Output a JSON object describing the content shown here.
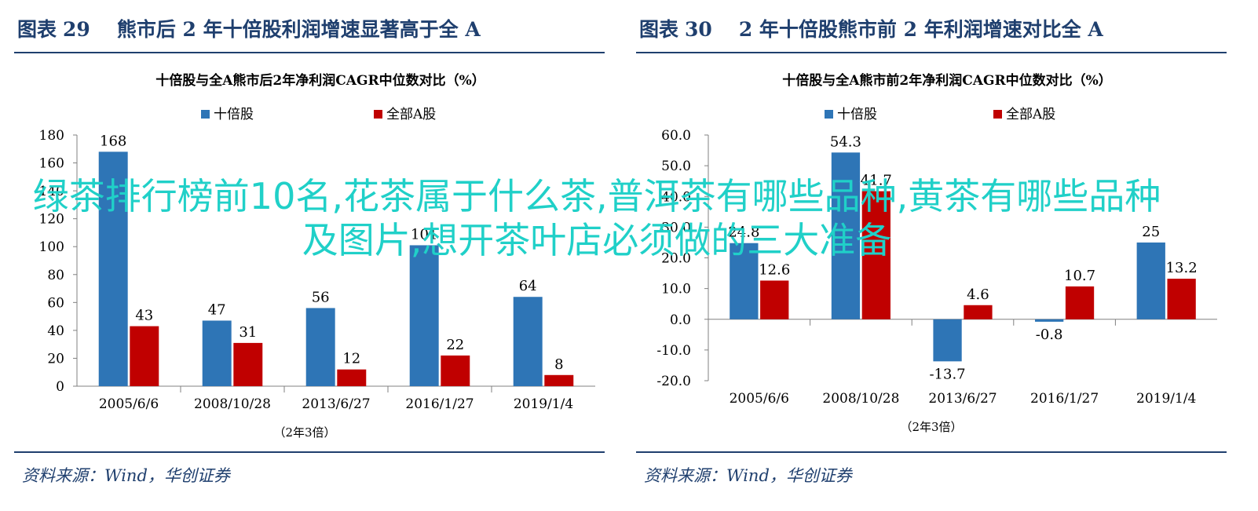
{
  "left": {
    "fig_label": "图表",
    "fig_num": "29",
    "fig_title": "熊市后 2 年十倍股利润增速显著高于全 A",
    "source": "资料来源：Wind，华创证券"
  },
  "right": {
    "fig_label": "图表",
    "fig_num": "30",
    "fig_title": "2 年十倍股熊市前 2 年利润增速对比全 A",
    "source": "资料来源：Wind，华创证券"
  },
  "overlay_text": "绿茶排行榜前10名,花茶属于什么茶,普洱茶有哪些品种,黄茶有哪些品种及图片,想开茶叶店必须做的三大准备",
  "colors": {
    "blue": "#2e75b6",
    "red": "#c00000",
    "title": "#1f3f6e",
    "overlay": "#20d0c8"
  },
  "chart_data": [
    {
      "type": "bar",
      "title": "十倍股与全A熊市后2年净利润CAGR中位数对比（%）",
      "categories": [
        "2005/6/6",
        "2008/10/28",
        "2013/6/27",
        "2016/1/27",
        "2019/1/4"
      ],
      "xlabel": "（2年3倍）",
      "ylim": [
        0,
        180
      ],
      "yticks": [
        "0",
        "20",
        "40",
        "60",
        "80",
        "100",
        "120",
        "140",
        "160",
        "180"
      ],
      "legend_position": "top",
      "series": [
        {
          "name": "十倍股",
          "color": "#2e75b6",
          "values": [
            168,
            47,
            56,
            101,
            64
          ],
          "labels": [
            "168",
            "47",
            "56",
            "101",
            "64"
          ]
        },
        {
          "name": "全部A股",
          "color": "#c00000",
          "values": [
            43,
            31,
            12,
            22,
            8
          ],
          "labels": [
            "43",
            "31",
            "12",
            "22",
            "8"
          ]
        }
      ]
    },
    {
      "type": "bar",
      "title": "十倍股与全A熊市前2年净利润CAGR中位数对比（%）",
      "categories": [
        "2005/6/6",
        "2008/10/28",
        "2013/6/27",
        "2016/1/27",
        "2019/1/4"
      ],
      "xlabel": "（2年3倍）",
      "ylim": [
        -20,
        60
      ],
      "yticks": [
        "-20.0",
        "-10.0",
        "0.0",
        "10.0",
        "20.0",
        "30.0",
        "40.0",
        "50.0",
        "60.0"
      ],
      "legend_position": "top",
      "series": [
        {
          "name": "十倍股",
          "color": "#2e75b6",
          "values": [
            24.8,
            54.3,
            -13.7,
            -0.8,
            25
          ],
          "labels": [
            "24.8",
            "54.3",
            "-13.7",
            "-0.8",
            "25"
          ]
        },
        {
          "name": "全部A股",
          "color": "#c00000",
          "values": [
            12.6,
            41.7,
            4.6,
            10.7,
            13.2
          ],
          "labels": [
            "12.6",
            "41.7",
            "4.6",
            "10.7",
            "13.2"
          ]
        }
      ]
    }
  ]
}
